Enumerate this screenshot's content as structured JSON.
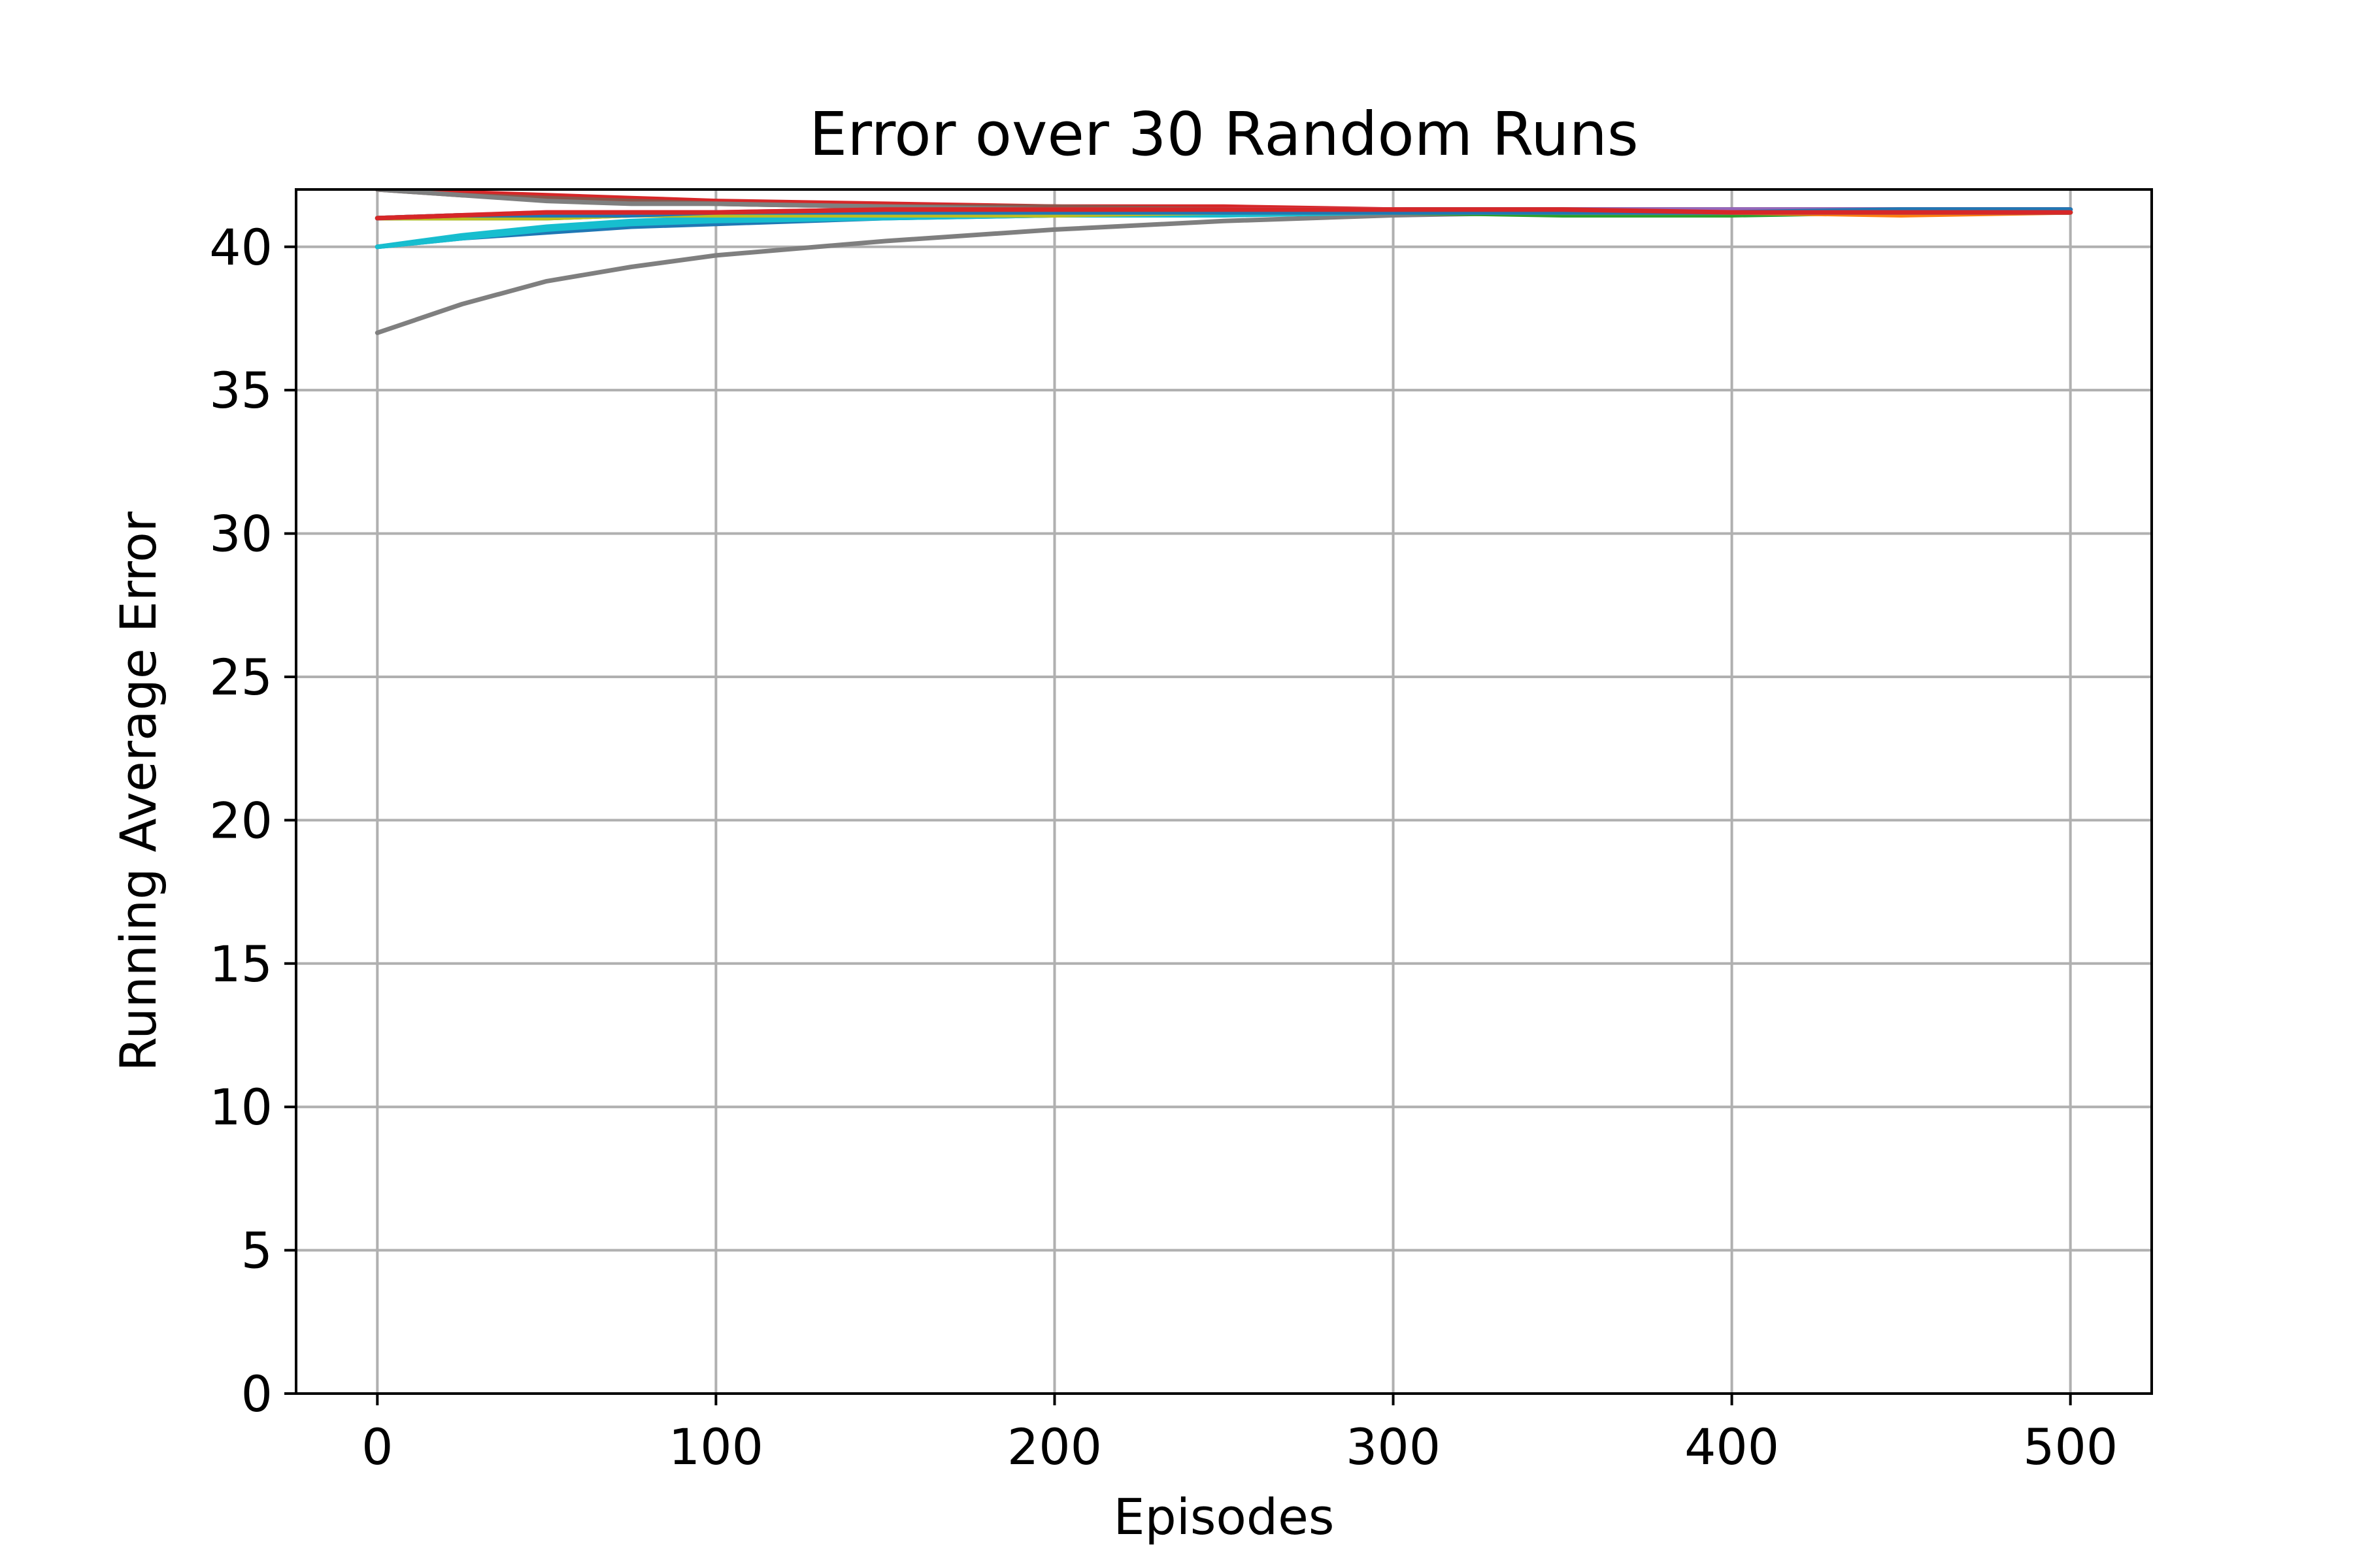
{
  "chart_data": {
    "type": "line",
    "title": "Error over 30 Random Runs",
    "xlabel": "Episodes",
    "ylabel": "Running Average Error",
    "xlim": [
      -24,
      524
    ],
    "ylim": [
      0,
      42
    ],
    "xticks": [
      0,
      100,
      200,
      300,
      400,
      500
    ],
    "yticks": [
      0,
      5,
      10,
      15,
      20,
      25,
      30,
      35,
      40
    ],
    "grid": true,
    "legend": "none",
    "x": [
      0,
      25,
      50,
      75,
      100,
      150,
      200,
      250,
      300,
      350,
      400,
      450,
      500
    ],
    "series": [
      {
        "color": "#7f7f7f",
        "values": [
          37.0,
          38.0,
          38.8,
          39.3,
          39.7,
          40.2,
          40.6,
          40.9,
          41.1,
          41.2,
          41.2,
          41.2,
          41.2
        ]
      },
      {
        "color": "#17becf",
        "values": [
          40.0,
          40.4,
          40.7,
          40.9,
          41.0,
          41.1,
          41.2,
          41.2,
          41.2,
          41.3,
          41.3,
          41.3,
          41.3
        ]
      },
      {
        "color": "#bcbd22",
        "values": [
          41.0,
          41.0,
          41.1,
          41.1,
          41.1,
          41.2,
          41.2,
          41.2,
          41.2,
          41.2,
          41.2,
          41.2,
          41.2
        ]
      },
      {
        "color": "#1f77b4",
        "values": [
          40.0,
          40.3,
          40.5,
          40.7,
          40.8,
          41.0,
          41.1,
          41.2,
          41.2,
          41.2,
          41.2,
          41.2,
          41.2
        ]
      },
      {
        "color": "#d62728",
        "values": [
          42.0,
          41.9,
          41.8,
          41.7,
          41.6,
          41.5,
          41.4,
          41.4,
          41.3,
          41.3,
          41.3,
          41.3,
          41.3
        ]
      },
      {
        "color": "#8c564b",
        "values": [
          42.0,
          41.8,
          41.7,
          41.6,
          41.5,
          41.4,
          41.4,
          41.3,
          41.3,
          41.3,
          41.2,
          41.2,
          41.2
        ]
      },
      {
        "color": "#9467bd",
        "values": [
          41.0,
          41.1,
          41.1,
          41.2,
          41.2,
          41.2,
          41.2,
          41.3,
          41.3,
          41.3,
          41.3,
          41.3,
          41.3
        ]
      },
      {
        "color": "#2ca02c",
        "values": [
          41.0,
          41.0,
          41.0,
          41.1,
          41.1,
          41.1,
          41.2,
          41.2,
          41.2,
          41.1,
          41.1,
          41.2,
          41.2
        ]
      },
      {
        "color": "#ff7f0e",
        "values": [
          41.0,
          41.1,
          41.1,
          41.2,
          41.2,
          41.2,
          41.2,
          41.2,
          41.3,
          41.2,
          41.2,
          41.1,
          41.2
        ]
      },
      {
        "color": "#e377c2",
        "values": [
          41.0,
          41.1,
          41.2,
          41.2,
          41.2,
          41.3,
          41.3,
          41.3,
          41.3,
          41.2,
          41.2,
          41.2,
          41.2
        ]
      },
      {
        "color": "#7f7f7f",
        "values": [
          42.0,
          41.8,
          41.6,
          41.5,
          41.5,
          41.4,
          41.3,
          41.3,
          41.2,
          41.2,
          41.2,
          41.2,
          41.2
        ]
      },
      {
        "color": "#17becf",
        "values": [
          40.0,
          40.3,
          40.6,
          40.8,
          40.9,
          41.0,
          41.1,
          41.1,
          41.2,
          41.2,
          41.2,
          41.2,
          41.2
        ]
      },
      {
        "color": "#bcbd22",
        "values": [
          41.0,
          41.0,
          41.0,
          41.1,
          41.1,
          41.1,
          41.1,
          41.2,
          41.2,
          41.2,
          41.2,
          41.2,
          41.2
        ]
      },
      {
        "color": "#1f77b4",
        "values": [
          41.0,
          41.1,
          41.1,
          41.1,
          41.2,
          41.2,
          41.2,
          41.2,
          41.2,
          41.2,
          41.2,
          41.3,
          41.3
        ]
      },
      {
        "color": "#d62728",
        "values": [
          41.0,
          41.1,
          41.2,
          41.2,
          41.2,
          41.3,
          41.3,
          41.3,
          41.3,
          41.3,
          41.2,
          41.2,
          41.2
        ]
      }
    ]
  }
}
